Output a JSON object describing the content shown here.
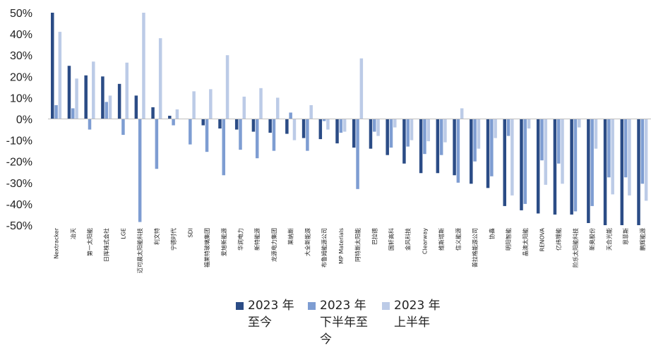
{
  "chart_data": {
    "type": "bar",
    "title": "",
    "xlabel": "",
    "ylabel": "",
    "ylim": [
      -50,
      50
    ],
    "y_ticks": [
      "50%",
      "40%",
      "30%",
      "20%",
      "10%",
      "0%",
      "-10%",
      "-20%",
      "-30%",
      "-40%",
      "-50%"
    ],
    "categories": [
      "Nextracker",
      "冶天",
      "第一太阳能",
      "日挥株式会社",
      "LGE",
      "迈可晨太阳能科技",
      "利文特",
      "宁德时代",
      "SDI",
      "福莱特玻璃集团",
      "爱旭新能源",
      "华润电力",
      "新特能源",
      "龙源电力集团",
      "莱纳斯",
      "大全新能源",
      "布鲁姆能源公司",
      "MP Materials",
      "阿特斯太阳能",
      "巴拉德",
      "国轩高科",
      "金风科技",
      "Clearway",
      "维斯塔斯",
      "信义能源",
      "普拉格能源公司",
      "协鑫",
      "明阳智能",
      "晶澳太阳能",
      "RENOVA",
      "亿纬锂能",
      "阶乐太阳能科技",
      "新奥股份",
      "天合光能",
      "恩菲斯",
      "鹏辉能源"
    ],
    "series": [
      {
        "name": "2023 年至今",
        "color": "#2b4c86",
        "values": [
          50,
          25,
          20.5,
          20,
          16.5,
          11,
          5.5,
          1.5,
          0,
          -3,
          -4.5,
          -5,
          -6,
          -6.5,
          -7,
          -9,
          -9.5,
          -11.5,
          -13.5,
          -14,
          -17,
          -21,
          -25.5,
          -25.5,
          -26.5,
          -30.5,
          -32.5,
          -41,
          -43,
          -44.5,
          -45,
          -45,
          -49,
          -50,
          -50,
          -50
        ]
      },
      {
        "name": "2023 年下半年至今",
        "color": "#7e9dd2",
        "values": [
          6.5,
          5,
          -5,
          8,
          -7.5,
          -48.5,
          -23.5,
          -3,
          -12,
          -15.5,
          -26.5,
          -14.5,
          -18.5,
          -15,
          3,
          -15,
          -1,
          -6.5,
          -33,
          -6,
          -13.5,
          -13,
          -16.5,
          -17,
          -30,
          -20,
          -27,
          -8,
          -40,
          -19.5,
          -21,
          -43.5,
          -41,
          -27.5,
          -27.5,
          -30.5
        ]
      },
      {
        "name": "2023 年上半年",
        "color": "#bccbe7",
        "values": [
          41,
          19,
          27,
          11,
          26.5,
          50,
          38,
          4.5,
          13,
          14,
          30,
          10.5,
          14.5,
          10,
          -10,
          6.5,
          -5,
          -6,
          28.5,
          -8,
          -4,
          -10,
          -10.5,
          -11,
          5,
          -14,
          -9,
          -36,
          -4.5,
          -31,
          -30.5,
          -4,
          -14,
          -35.5,
          -36,
          -38.5
        ]
      }
    ],
    "grid": false,
    "legend_position": "bottom"
  }
}
